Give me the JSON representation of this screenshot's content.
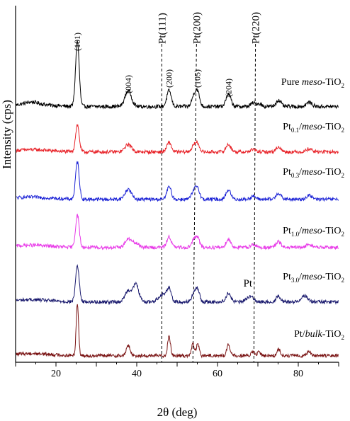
{
  "chart_data": {
    "type": "line",
    "xlabel": "2θ (deg)",
    "ylabel": "Intensity (cps)",
    "xlim": [
      10,
      90
    ],
    "xticks": [
      20,
      40,
      60,
      80
    ],
    "grid": false,
    "legend": "none",
    "peak_labels": [
      {
        "text": "(101)",
        "x": 25.3
      },
      {
        "text": "(004)",
        "x": 37.9
      },
      {
        "text": "(200)",
        "x": 48.0
      },
      {
        "text": "(105)",
        "x": 55.0
      },
      {
        "text": "(204)",
        "x": 62.7
      }
    ],
    "reference_lines": [
      {
        "label": "Pt(111)",
        "x_top": 46.2,
        "x_bottom": 46.2
      },
      {
        "label": "Pt(200)",
        "x_top": 54.8,
        "x_bottom": 53.9
      },
      {
        "label": "Pt(220)",
        "x_top": 69.4,
        "x_bottom": 69.0
      }
    ],
    "annotations": [
      {
        "text": "Pt",
        "x": 67.5,
        "series": 4
      }
    ],
    "series": [
      {
        "name": "Pure meso-TiO2",
        "label_parts": [
          {
            "t": "Pure "
          },
          {
            "t": "meso",
            "i": true
          },
          {
            "t": "-TiO"
          },
          {
            "t": "2",
            "sub": true
          }
        ],
        "color": "#000000",
        "base": 0.0,
        "peaks": [
          [
            25.3,
            9.5,
            0.45
          ],
          [
            37.9,
            2.3,
            0.8
          ],
          [
            48.0,
            2.3,
            0.55
          ],
          [
            54.2,
            1.6,
            0.55
          ],
          [
            55.1,
            1.9,
            0.5
          ],
          [
            62.7,
            1.8,
            0.6
          ],
          [
            68.8,
            0.5,
            0.6
          ],
          [
            70.3,
            0.4,
            0.6
          ],
          [
            75.1,
            0.9,
            0.6
          ],
          [
            82.7,
            0.6,
            0.7
          ],
          [
            14.0,
            0.3,
            1.5
          ]
        ]
      },
      {
        "name": "Pt0.1/meso-TiO2",
        "label_parts": [
          {
            "t": "Pt"
          },
          {
            "t": "0.1",
            "sub": true
          },
          {
            "t": "/"
          },
          {
            "t": "meso",
            "i": true
          },
          {
            "t": "-TiO"
          },
          {
            "t": "2",
            "sub": true
          }
        ],
        "color": "#e8242a",
        "base": 0.0,
        "peaks": [
          [
            25.3,
            4.3,
            0.45
          ],
          [
            37.9,
            1.2,
            0.8
          ],
          [
            48.0,
            1.5,
            0.55
          ],
          [
            54.2,
            1.0,
            0.6
          ],
          [
            55.1,
            1.1,
            0.5
          ],
          [
            62.7,
            1.2,
            0.6
          ],
          [
            68.8,
            0.4,
            0.6
          ],
          [
            75.1,
            0.8,
            0.6
          ],
          [
            82.7,
            0.5,
            0.7
          ]
        ]
      },
      {
        "name": "Pt0.3/meso-TiO2",
        "label_parts": [
          {
            "t": "Pt"
          },
          {
            "t": "0.3",
            "sub": true
          },
          {
            "t": "/"
          },
          {
            "t": "meso",
            "i": true
          },
          {
            "t": "-TiO"
          },
          {
            "t": "2",
            "sub": true
          }
        ],
        "color": "#1c23d6",
        "base": 0.0,
        "peaks": [
          [
            25.3,
            6.0,
            0.45
          ],
          [
            37.9,
            1.6,
            0.8
          ],
          [
            48.0,
            2.0,
            0.55
          ],
          [
            54.2,
            1.3,
            0.6
          ],
          [
            55.1,
            1.6,
            0.5
          ],
          [
            62.7,
            1.5,
            0.6
          ],
          [
            68.8,
            0.5,
            0.6
          ],
          [
            75.1,
            1.0,
            0.6
          ],
          [
            82.7,
            0.6,
            0.7
          ]
        ]
      },
      {
        "name": "Pt1.0/meso-TiO2",
        "label_parts": [
          {
            "t": "Pt"
          },
          {
            "t": "1.0",
            "sub": true
          },
          {
            "t": "/"
          },
          {
            "t": "meso",
            "i": true
          },
          {
            "t": "-TiO"
          },
          {
            "t": "2",
            "sub": true
          }
        ],
        "color": "#e83be8",
        "base": 0.0,
        "peaks": [
          [
            25.3,
            5.2,
            0.45
          ],
          [
            37.9,
            1.3,
            0.8
          ],
          [
            39.8,
            0.6,
            0.9
          ],
          [
            48.0,
            1.7,
            0.55
          ],
          [
            54.2,
            1.2,
            0.6
          ],
          [
            55.1,
            1.3,
            0.5
          ],
          [
            62.7,
            1.3,
            0.6
          ],
          [
            68.8,
            0.5,
            0.6
          ],
          [
            75.1,
            0.9,
            0.6
          ],
          [
            82.7,
            0.5,
            0.7
          ]
        ]
      },
      {
        "name": "Pt3.0/meso-TiO2",
        "label_parts": [
          {
            "t": "Pt"
          },
          {
            "t": "3.0",
            "sub": true
          },
          {
            "t": "/"
          },
          {
            "t": "meso",
            "i": true
          },
          {
            "t": "-TiO"
          },
          {
            "t": "2",
            "sub": true
          }
        ],
        "color": "#1a1a6e",
        "base": 0.0,
        "peaks": [
          [
            25.3,
            5.8,
            0.45
          ],
          [
            37.9,
            1.8,
            0.8
          ],
          [
            39.8,
            2.8,
            0.7
          ],
          [
            46.4,
            1.2,
            1.0
          ],
          [
            48.0,
            2.0,
            0.55
          ],
          [
            54.2,
            1.3,
            0.6
          ],
          [
            55.1,
            1.7,
            0.5
          ],
          [
            62.7,
            1.4,
            0.6
          ],
          [
            67.6,
            0.7,
            0.7
          ],
          [
            68.8,
            0.5,
            0.6
          ],
          [
            75.1,
            0.9,
            0.6
          ],
          [
            81.5,
            1.0,
            0.8
          ]
        ]
      },
      {
        "name": "Pt/bulk-TiO2",
        "label_parts": [
          {
            "t": "Pt/"
          },
          {
            "t": "bulk",
            "i": true
          },
          {
            "t": "-TiO"
          },
          {
            "t": "2",
            "sub": true
          }
        ],
        "color": "#7a1414",
        "base": 0.0,
        "peaks": [
          [
            25.3,
            8.3,
            0.3
          ],
          [
            37.9,
            1.7,
            0.45
          ],
          [
            48.0,
            3.2,
            0.35
          ],
          [
            53.9,
            1.9,
            0.35
          ],
          [
            55.1,
            1.9,
            0.35
          ],
          [
            62.7,
            1.8,
            0.4
          ],
          [
            68.8,
            0.6,
            0.4
          ],
          [
            70.3,
            0.6,
            0.4
          ],
          [
            75.1,
            1.1,
            0.4
          ],
          [
            82.7,
            0.6,
            0.5
          ]
        ]
      }
    ]
  }
}
